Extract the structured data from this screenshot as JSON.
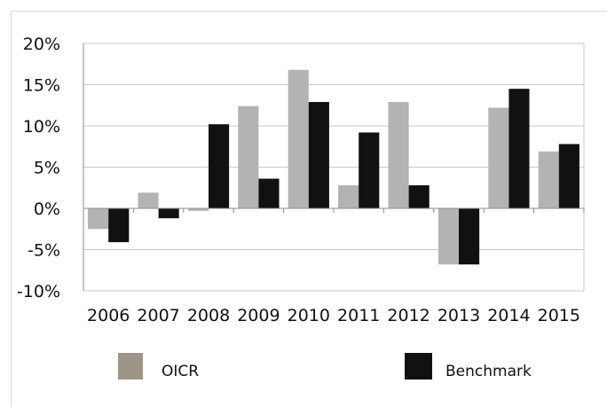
{
  "chart_data": {
    "type": "bar",
    "title": "",
    "xlabel": "",
    "ylabel": "",
    "categories": [
      "2006",
      "2007",
      "2008",
      "2009",
      "2010",
      "2011",
      "2012",
      "2013",
      "2014",
      "2015"
    ],
    "series": [
      {
        "name": "OICR",
        "color": "#b3b3b3",
        "values": [
          -2.5,
          1.9,
          -0.3,
          12.4,
          16.8,
          2.8,
          12.9,
          -6.8,
          12.2,
          6.9
        ]
      },
      {
        "name": "Benchmark",
        "color": "#111111",
        "values": [
          -4.1,
          -1.2,
          10.2,
          3.6,
          12.9,
          9.2,
          2.8,
          -6.8,
          14.5,
          7.8
        ]
      }
    ],
    "ylim": [
      -10,
      20
    ],
    "yticks": [
      20,
      15,
      10,
      5,
      0,
      -5,
      -10
    ],
    "ytick_labels": [
      "20%",
      "15%",
      "10%",
      "5%",
      "0%",
      "-5%",
      "-10%"
    ],
    "grid": true,
    "legend_position": "bottom"
  },
  "legend": {
    "items": [
      {
        "label": "OICR",
        "swatch_color": "#9e9589"
      },
      {
        "label": "Benchmark",
        "swatch_color": "#111111"
      }
    ]
  }
}
